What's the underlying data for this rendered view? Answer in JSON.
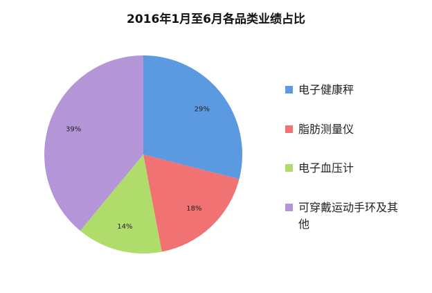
{
  "chart_data": {
    "type": "pie",
    "title": "2016年1月至6月各品类业绩占比",
    "categories": [
      "电子健康秤",
      "脂肪测量仪",
      "电子血压计",
      "可穿戴运动手环及其他"
    ],
    "values": [
      29,
      18,
      14,
      39
    ],
    "value_labels": [
      "29%",
      "18%",
      "14%",
      "39%"
    ],
    "colors": [
      "#5b9ae0",
      "#f07272",
      "#b0dc6c",
      "#b395d8"
    ]
  }
}
